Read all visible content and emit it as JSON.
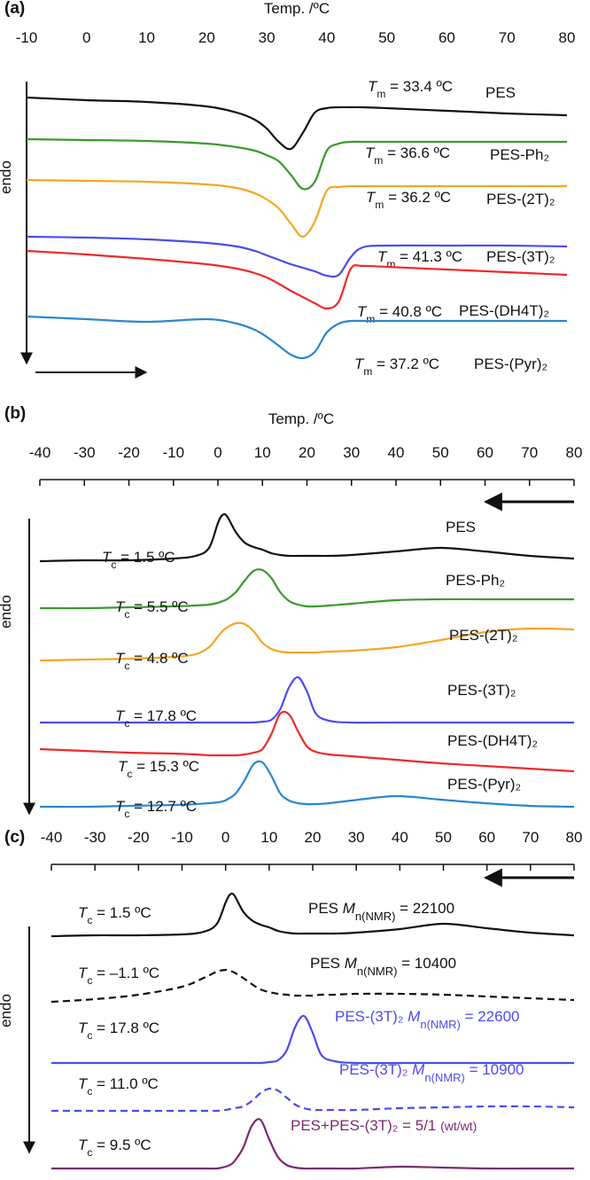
{
  "chart_data": [
    {
      "type": "line",
      "panel": "(a)",
      "title": "Temp. /ºC",
      "ylabel": "endo",
      "xlim": [
        -10,
        80
      ],
      "xticks": [
        -10,
        0,
        10,
        20,
        30,
        40,
        50,
        60,
        70,
        80
      ],
      "ylim": [
        0,
        35
      ],
      "x": [
        -10,
        0,
        10,
        20,
        25,
        28,
        30,
        32,
        34,
        36,
        38,
        40,
        42,
        44,
        46,
        50,
        60,
        70,
        80
      ],
      "series": [
        {
          "name": "PES",
          "color": "#111111",
          "annotation": {
            "symbol": "T",
            "sub": "m",
            "text": " = 33.4 ºC"
          },
          "values": [
            33,
            32.7,
            32.5,
            32,
            31.3,
            30.5,
            29.5,
            28,
            27.2,
            29,
            31.3,
            31.8,
            31.9,
            31.9,
            31.9,
            31.8,
            31.5,
            31.2,
            31
          ]
        },
        {
          "name": "PES-Ph₂",
          "color": "#3a9a2c",
          "annotation": {
            "symbol": "T",
            "sub": "m",
            "text": " = 36.6 ºC"
          },
          "values": [
            28.3,
            28.2,
            28.1,
            27.8,
            27.4,
            27,
            26.5,
            25.8,
            24.3,
            22.7,
            23.5,
            27,
            27.8,
            28,
            28,
            28,
            28,
            28,
            28
          ]
        },
        {
          "name": "PES-(2T)₂",
          "color": "#f5a623",
          "annotation": {
            "symbol": "T",
            "sub": "m",
            "text": " = 36.2 ºC"
          },
          "values": [
            23.7,
            23.6,
            23.5,
            23.2,
            22.8,
            22.2,
            21.5,
            20.5,
            18.8,
            17.3,
            19,
            22.5,
            22.9,
            23,
            23,
            23,
            23,
            23,
            23
          ]
        },
        {
          "name": "PES-(3T)₂",
          "color": "#4b4bef",
          "annotation": {
            "symbol": "T",
            "sub": "m",
            "text": " = 41.3 ºC"
          },
          "values": [
            17.3,
            17.2,
            17,
            16.6,
            16.2,
            15.7,
            15.2,
            14.7,
            14.2,
            13.8,
            13.4,
            12.9,
            13,
            15,
            16.1,
            16.3,
            16.3,
            16.3,
            16.2
          ]
        },
        {
          "name": "PES-(DH4T)₂",
          "color": "#f0282a",
          "annotation": {
            "symbol": "T",
            "sub": "m",
            "text": " = 40.8 ºC"
          },
          "values": [
            15.7,
            15.3,
            14.8,
            14.2,
            13.7,
            13.2,
            12.7,
            12,
            11.2,
            10.5,
            9.8,
            9.2,
            10,
            13.7,
            14,
            13.9,
            13.6,
            13.3,
            13
          ]
        },
        {
          "name": "PES-(Pyr)₂",
          "color": "#2a86d1",
          "annotation": {
            "symbol": "T",
            "sub": "m",
            "text": " = 37.2 ºC"
          },
          "values": [
            8.3,
            8,
            7.7,
            8,
            7.5,
            6.8,
            6,
            5,
            4,
            3.6,
            4.3,
            6.5,
            7.5,
            7.8,
            7.8,
            7.8,
            7.8,
            7.8,
            7.8
          ]
        }
      ]
    },
    {
      "type": "line",
      "panel": "(b)",
      "title": "Temp. /ºC",
      "ylabel": "endo",
      "xlim": [
        -40,
        80
      ],
      "xticks": [
        -40,
        -30,
        -20,
        -10,
        0,
        10,
        20,
        30,
        40,
        50,
        60,
        70,
        80
      ],
      "ylim": [
        0,
        36
      ],
      "x": [
        -40,
        -30,
        -20,
        -10,
        -5,
        -2,
        0,
        1,
        2,
        4,
        6,
        8,
        10,
        12,
        14,
        16,
        18,
        20,
        22,
        25,
        30,
        40,
        50,
        60,
        70,
        80
      ],
      "series": [
        {
          "name": "PES",
          "color": "#111111",
          "annotation": {
            "symbol": "T",
            "sub": "c",
            "text": " = 1.5 ºC"
          },
          "values": [
            30.7,
            30.8,
            30.8,
            31,
            31.3,
            32.2,
            35,
            35.9,
            35.8,
            34,
            32.8,
            32.3,
            32,
            31.6,
            31.4,
            31.3,
            31.3,
            31.3,
            31.3,
            31.3,
            31.4,
            31.8,
            32.2,
            31.8,
            31.3,
            31
          ]
        },
        {
          "name": "PES-Ph₂",
          "color": "#3a9a2c",
          "annotation": {
            "symbol": "T",
            "sub": "c",
            "text": " = 5.5 ºC"
          },
          "values": [
            25.4,
            25.4,
            25.5,
            25.6,
            25.7,
            25.8,
            26,
            26.2,
            26.4,
            27.2,
            28.5,
            29.6,
            29.7,
            28.8,
            27.2,
            26.2,
            25.8,
            25.6,
            25.6,
            25.7,
            25.9,
            26.3,
            26.4,
            26.4,
            26.4,
            26.4
          ]
        },
        {
          "name": "PES-(2T)₂",
          "color": "#f5a623",
          "annotation": {
            "symbol": "T",
            "sub": "c",
            "text": " = 4.8 ºC"
          },
          "values": [
            19.5,
            19.6,
            19.7,
            19.9,
            20.2,
            21,
            22.2,
            22.8,
            23.2,
            23.7,
            23.6,
            22.8,
            21.5,
            20.8,
            20.5,
            20.4,
            20.4,
            20.4,
            20.4,
            20.5,
            20.6,
            21,
            21.8,
            22.7,
            23.1,
            23
          ]
        },
        {
          "name": "PES-(3T)₂",
          "color": "#4b4bef",
          "annotation": {
            "symbol": "T",
            "sub": "c",
            "text": " = 17.8 ºC"
          },
          "values": [
            12.5,
            12.5,
            12.5,
            12.5,
            12.5,
            12.5,
            12.5,
            12.5,
            12.5,
            12.5,
            12.5,
            12.5,
            12.6,
            12.8,
            14,
            16.5,
            17.6,
            16,
            13.5,
            12.7,
            12.5,
            12.5,
            12.5,
            12.5,
            12.5,
            12.5
          ]
        },
        {
          "name": "PES-(DH4T)₂",
          "color": "#f0282a",
          "annotation": {
            "symbol": "T",
            "sub": "c",
            "text": " = 15.3 ºC"
          },
          "values": [
            9.5,
            9.3,
            9.1,
            9,
            8.9,
            8.8,
            8.8,
            8.8,
            8.8,
            8.8,
            8.9,
            9.1,
            9.5,
            11.2,
            13.5,
            13.4,
            11.5,
            9.8,
            9.2,
            8.9,
            8.7,
            8.3,
            7.9,
            7.6,
            7.3,
            7
          ]
        },
        {
          "name": "PES-(Pyr)₂",
          "color": "#2a86d1",
          "annotation": {
            "symbol": "T",
            "sub": "c",
            "text": " = 12.7 ºC"
          },
          "values": [
            3,
            3,
            3.1,
            3.2,
            3.3,
            3.4,
            3.5,
            3.6,
            3.8,
            4.5,
            6,
            7.8,
            8,
            6.5,
            4.5,
            3.7,
            3.4,
            3.3,
            3.3,
            3.4,
            3.7,
            4.2,
            3.8,
            3.4,
            3.1,
            3
          ]
        }
      ]
    },
    {
      "type": "line",
      "panel": "(c)",
      "ylabel": "endo",
      "xlim": [
        -40,
        80
      ],
      "xticks": [
        -40,
        -30,
        -20,
        -10,
        0,
        10,
        20,
        30,
        40,
        50,
        60,
        70,
        80
      ],
      "ylim": [
        0,
        34
      ],
      "x": [
        -40,
        -30,
        -20,
        -10,
        -5,
        -2,
        0,
        1,
        2,
        4,
        6,
        8,
        10,
        12,
        14,
        16,
        18,
        20,
        22,
        25,
        30,
        40,
        50,
        60,
        70,
        80
      ],
      "series": [
        {
          "name": [
            {
              "text": "PES "
            },
            {
              "text": "M",
              "style": "italic"
            },
            {
              "text": "n(NMR)",
              "style": "sub"
            },
            {
              "text": " = 22100"
            }
          ],
          "color": "#111111",
          "dash": false,
          "annotation": {
            "symbol": "T",
            "sub": "c",
            "text": " = 1.5 ºC"
          },
          "values": [
            27.4,
            27.5,
            27.5,
            27.6,
            27.9,
            28.8,
            31.2,
            32.1,
            32,
            30.2,
            29.2,
            28.7,
            28.4,
            28,
            27.8,
            27.7,
            27.7,
            27.7,
            27.7,
            27.7,
            27.8,
            28.2,
            28.8,
            28.3,
            27.8,
            27.5
          ]
        },
        {
          "name": [
            {
              "text": "PES "
            },
            {
              "text": "M",
              "style": "italic"
            },
            {
              "text": "n(NMR)",
              "style": "sub"
            },
            {
              "text": " = 10400"
            }
          ],
          "color": "#111111",
          "dash": true,
          "annotation": {
            "symbol": "T",
            "sub": "c",
            "text": " = –1.1 ºC"
          },
          "values": [
            20,
            20.3,
            20.8,
            21.7,
            22.7,
            23.4,
            23.6,
            23.5,
            23.3,
            22.7,
            22,
            21.4,
            21.1,
            20.9,
            20.8,
            20.7,
            20.7,
            20.7,
            20.8,
            20.8,
            20.9,
            20.9,
            20.8,
            20.6,
            20.4,
            20.2
          ]
        },
        {
          "name": [
            {
              "text": "PES-(3T)₂ "
            },
            {
              "text": "M",
              "style": "italic"
            },
            {
              "text": "n(NMR)",
              "style": "sub"
            },
            {
              "text": " = 22600"
            }
          ],
          "color": "#4b4bef",
          "dash": false,
          "annotation": {
            "symbol": "T",
            "sub": "c",
            "text": " = 17.8 ºC"
          },
          "values": [
            13.1,
            13.1,
            13.1,
            13.1,
            13.1,
            13.1,
            13.1,
            13.1,
            13.1,
            13.1,
            13.1,
            13.1,
            13.2,
            13.4,
            14.5,
            17.2,
            18.4,
            16.5,
            14,
            13.3,
            13.1,
            13.1,
            13.1,
            13.1,
            13.1,
            13.1
          ]
        },
        {
          "name": [
            {
              "text": "PES-(3T)₂ "
            },
            {
              "text": "M",
              "style": "italic"
            },
            {
              "text": "n(NMR)",
              "style": "sub"
            },
            {
              "text": " = 10900"
            }
          ],
          "color": "#4b4bef",
          "dash": true,
          "annotation": {
            "symbol": "T",
            "sub": "c",
            "text": " = 11.0 ºC"
          },
          "values": [
            7.7,
            7.7,
            7.7,
            7.7,
            7.7,
            7.7,
            7.8,
            7.9,
            8,
            8.2,
            8.8,
            9.7,
            10.2,
            10,
            9.2,
            8.4,
            8,
            7.8,
            7.8,
            7.8,
            7.8,
            8,
            8.1,
            8.2,
            8.2,
            8.1
          ]
        },
        {
          "name": [
            {
              "text": "PES+PES-(3T)₂ = 5/1 "
            },
            {
              "text": "(wt/wt)",
              "style": "small"
            }
          ],
          "color": "#7b2a6e",
          "dash": false,
          "annotation": {
            "symbol": "T",
            "sub": "c",
            "text": " = 9.5 ºC"
          },
          "values": [
            1.2,
            1.2,
            1.2,
            1.2,
            1.2,
            1.2,
            1.4,
            1.6,
            2,
            3.5,
            6,
            6.7,
            4.5,
            2.5,
            1.6,
            1.3,
            1.2,
            1.2,
            1.2,
            1.2,
            1.2,
            1.4,
            1.3,
            1.2,
            1.2,
            1.2
          ]
        }
      ]
    }
  ]
}
